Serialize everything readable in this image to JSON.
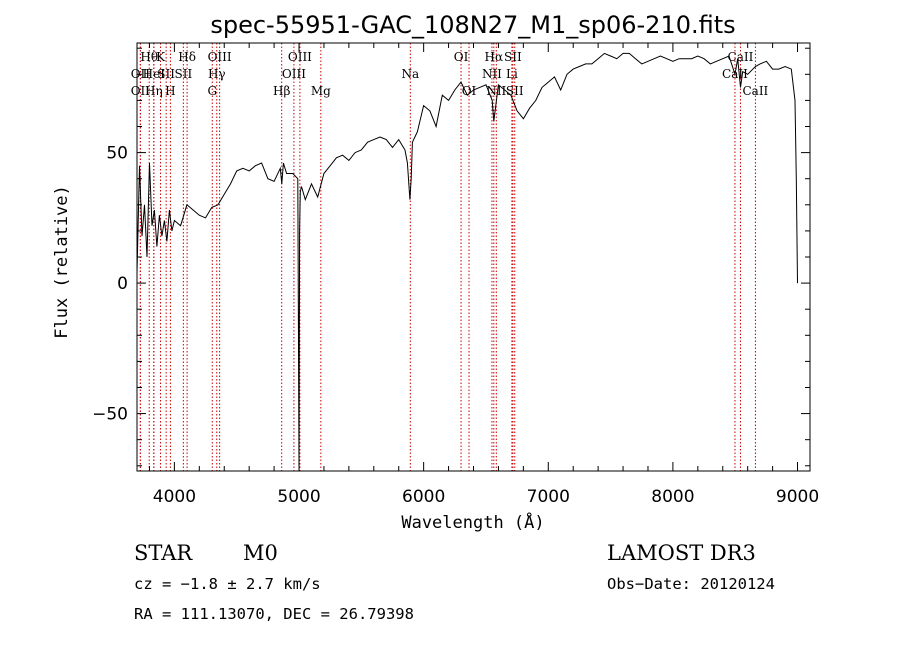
{
  "chart_data": {
    "type": "line",
    "title": "spec-55951-GAC_108N27_M1_sp06-210.fits",
    "xlabel": "Wavelength (Å)",
    "ylabel": "Flux (relative)",
    "xlim": [
      3700,
      9100
    ],
    "ylim": [
      -72,
      92
    ],
    "x_ticks": [
      4000,
      5000,
      6000,
      7000,
      8000,
      9000
    ],
    "y_ticks": [
      -50,
      0,
      50
    ],
    "grid": false,
    "legend": "none",
    "line_color": "#000000",
    "marker_color": "#cc0000",
    "series": [
      {
        "x": [
          3700,
          3720,
          3740,
          3760,
          3780,
          3800,
          3820,
          3840,
          3860,
          3880,
          3900,
          3920,
          3940,
          3960,
          3980,
          4000,
          4050,
          4100,
          4150,
          4200,
          4250,
          4300,
          4350,
          4400,
          4450,
          4500,
          4550,
          4600,
          4650,
          4700,
          4750,
          4800,
          4850,
          4862,
          4875,
          4900,
          4950,
          4990,
          5000,
          5005,
          5010,
          5020,
          5050,
          5100,
          5150,
          5200,
          5250,
          5300,
          5350,
          5400,
          5450,
          5500,
          5550,
          5600,
          5650,
          5700,
          5750,
          5800,
          5850,
          5870,
          5890,
          5900,
          5910,
          5930,
          5950,
          6000,
          6050,
          6100,
          6150,
          6200,
          6250,
          6300,
          6350,
          6400,
          6450,
          6500,
          6550,
          6563,
          6600,
          6650,
          6700,
          6750,
          6800,
          6850,
          6900,
          6950,
          7000,
          7050,
          7100,
          7150,
          7200,
          7250,
          7300,
          7350,
          7400,
          7450,
          7500,
          7550,
          7600,
          7650,
          7700,
          7750,
          7800,
          7850,
          7900,
          7950,
          8000,
          8050,
          8100,
          8150,
          8200,
          8250,
          8300,
          8350,
          8400,
          8450,
          8498,
          8520,
          8542,
          8560,
          8600,
          8662,
          8700,
          8750,
          8800,
          8850,
          8900,
          8950,
          8980,
          8990,
          9000
        ],
        "y": [
          4,
          45,
          18,
          30,
          10,
          46,
          22,
          28,
          14,
          26,
          18,
          24,
          16,
          28,
          20,
          24,
          22,
          30,
          28,
          26,
          25,
          29,
          30,
          34,
          38,
          43,
          44,
          43,
          45,
          46,
          40,
          39,
          44,
          38,
          46,
          42,
          42,
          40,
          -70,
          20,
          35,
          37,
          32,
          38,
          33,
          42,
          45,
          48,
          49,
          47,
          50,
          51,
          54,
          55,
          56,
          55,
          52,
          55,
          51,
          46,
          32,
          40,
          54,
          56,
          58,
          68,
          66,
          60,
          72,
          70,
          74,
          77,
          72,
          74,
          75,
          76,
          70,
          62,
          76,
          74,
          72,
          66,
          63,
          67,
          70,
          75,
          77,
          79,
          74,
          80,
          82,
          83,
          84,
          84,
          86,
          88,
          87,
          86,
          88,
          88,
          86,
          84,
          85,
          86,
          87,
          86,
          85,
          86,
          86,
          86,
          87,
          86,
          84,
          85,
          86,
          87,
          80,
          86,
          75,
          81,
          80,
          83,
          84,
          85,
          82,
          82,
          83,
          82,
          70,
          40,
          0
        ]
      }
    ],
    "spectral_lines": [
      {
        "label": "Hθ",
        "x": 3798,
        "row": 0
      },
      {
        "label": "OII",
        "x": 3727,
        "row": 1
      },
      {
        "label": "OII",
        "x": 3727,
        "row": 2
      },
      {
        "label": "HeI",
        "x": 3835,
        "row": 1
      },
      {
        "label": "Hη",
        "x": 3835,
        "row": 2
      },
      {
        "label": "K",
        "x": 3889,
        "row": 0
      },
      {
        "label": "SII",
        "x": 3934,
        "row": 1
      },
      {
        "label": "H",
        "x": 3968,
        "row": 2
      },
      {
        "label": "Hδ",
        "x": 4102,
        "row": 0
      },
      {
        "label": "SII",
        "x": 4072,
        "row": 1
      },
      {
        "label": "OIII",
        "x": 4363,
        "row": 0
      },
      {
        "label": "Hγ",
        "x": 4340,
        "row": 1
      },
      {
        "label": "G",
        "x": 4304,
        "row": 2
      },
      {
        "label": "OIII",
        "x": 5007,
        "row": 0
      },
      {
        "label": "OIII",
        "x": 4959,
        "row": 1
      },
      {
        "label": "Hβ",
        "x": 4861,
        "row": 2
      },
      {
        "label": "Mg",
        "x": 5175,
        "row": 2
      },
      {
        "label": "Na",
        "x": 5893,
        "row": 1
      },
      {
        "label": "OI",
        "x": 6300,
        "row": 0
      },
      {
        "label": "OI",
        "x": 6364,
        "row": 2
      },
      {
        "label": "Hα",
        "x": 6563,
        "row": 0
      },
      {
        "label": "NII",
        "x": 6548,
        "row": 1
      },
      {
        "label": "NII",
        "x": 6583,
        "row": 2
      },
      {
        "label": "SII",
        "x": 6716,
        "row": 0
      },
      {
        "label": "Li",
        "x": 6708,
        "row": 1
      },
      {
        "label": "SII",
        "x": 6731,
        "row": 2
      },
      {
        "label": "CaII",
        "x": 8542,
        "row": 0
      },
      {
        "label": "CaII",
        "x": 8498,
        "row": 1
      },
      {
        "label": "CaII",
        "x": 8662,
        "row": 2
      }
    ]
  },
  "footer": {
    "object_class": "STAR",
    "subclass": "M0",
    "survey": "LAMOST DR3",
    "cz": "cz = −1.8 ± 2.7 km/s",
    "obs_date": "Obs−Date: 20120124",
    "radec": "RA = 111.13070, DEC =  26.79398"
  }
}
